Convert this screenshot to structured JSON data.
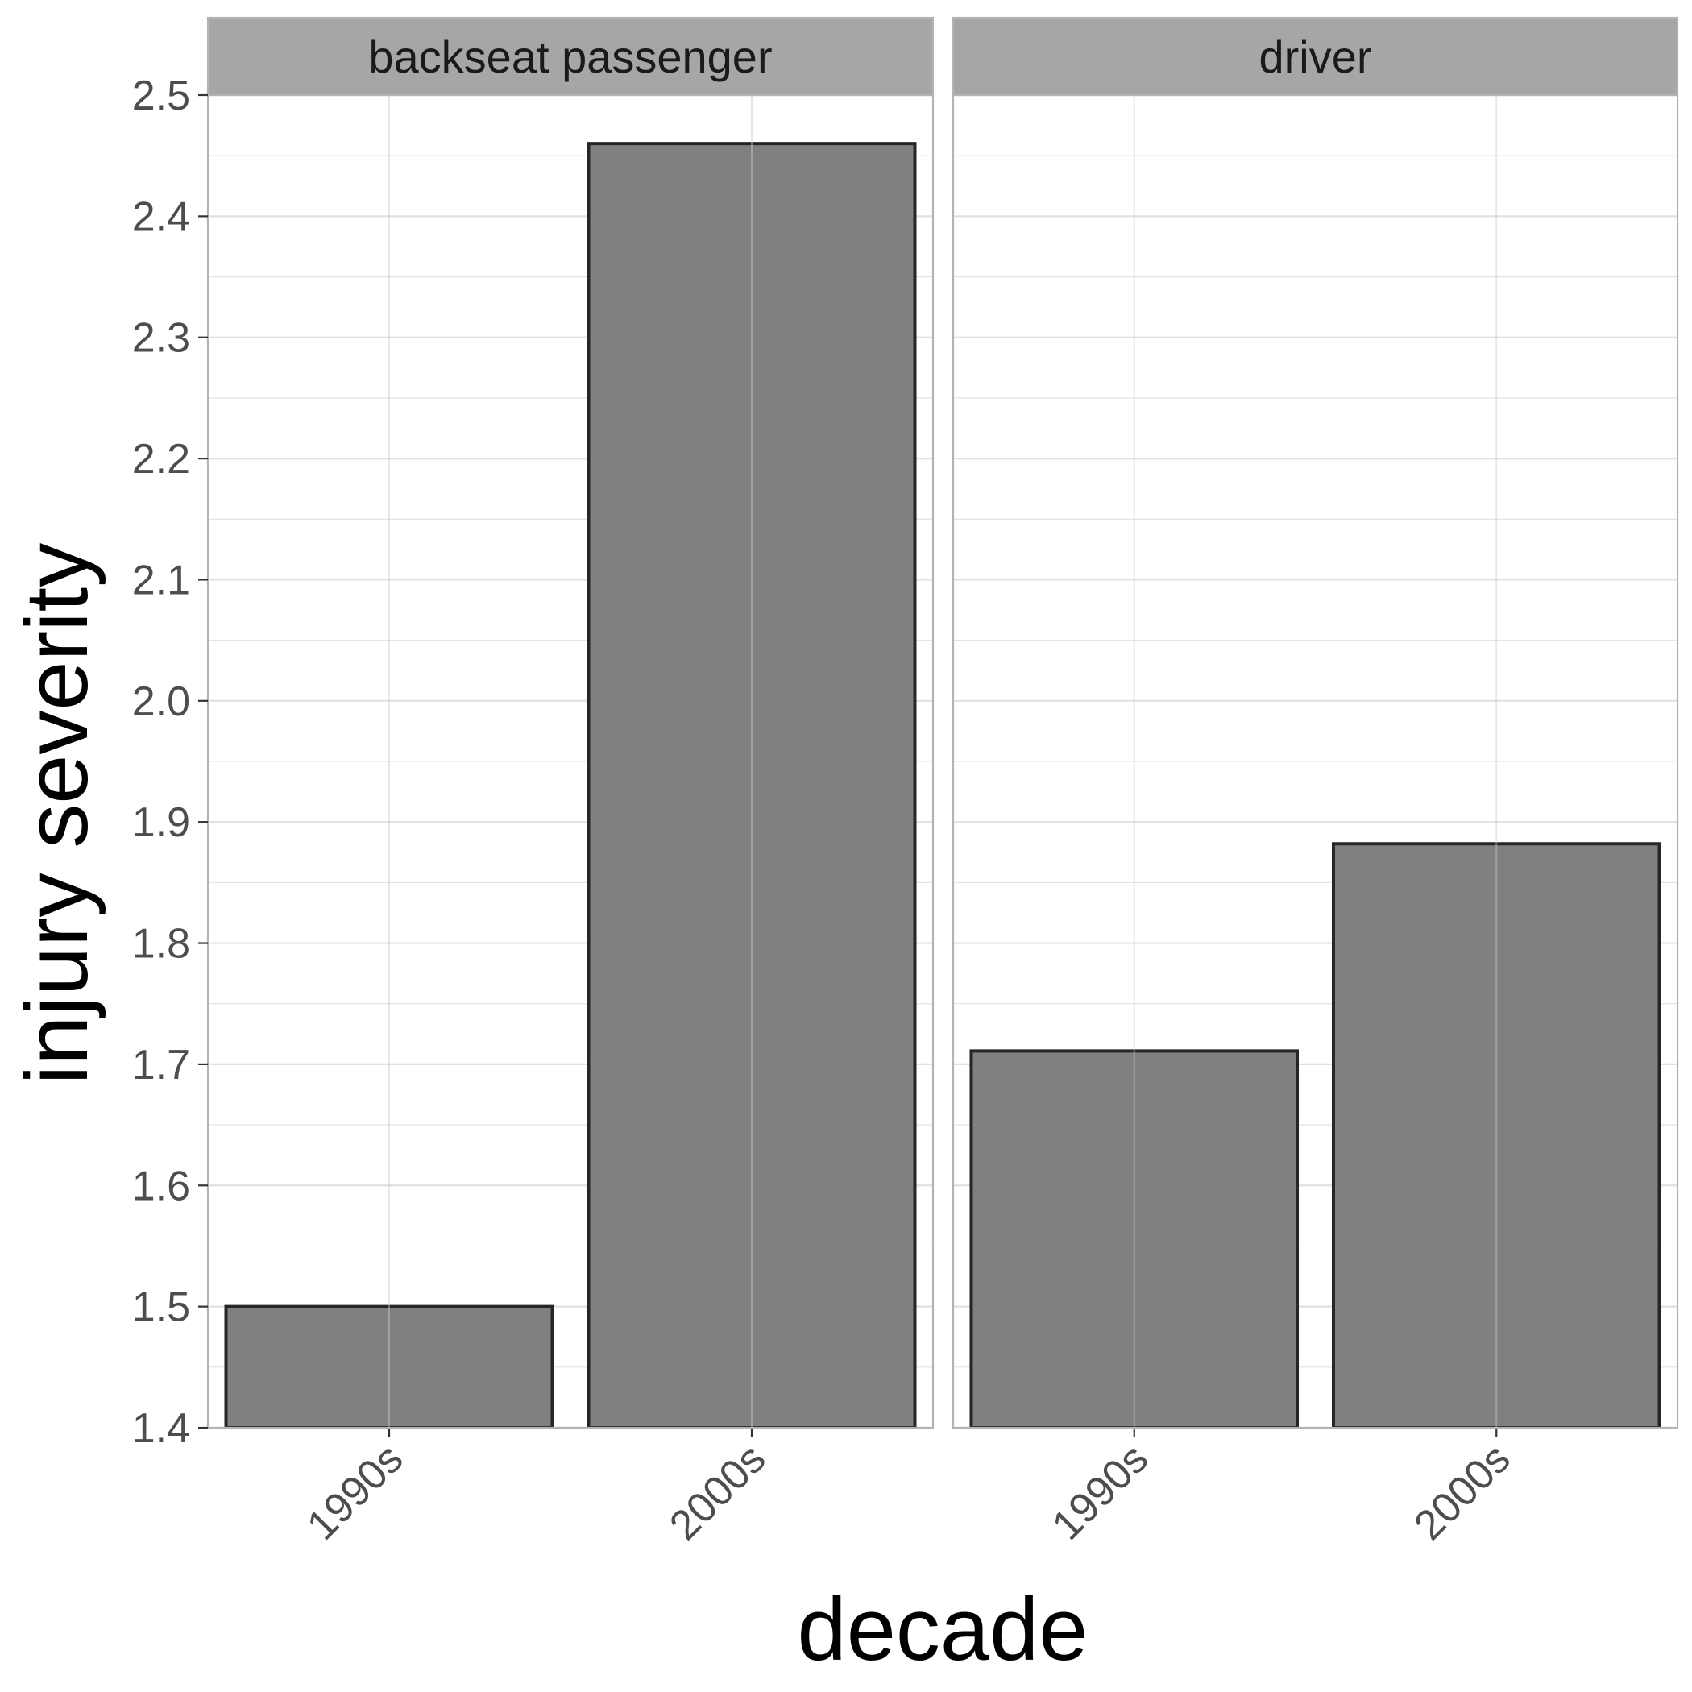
{
  "chart_data": {
    "type": "bar",
    "facet_by": "seat",
    "categories": [
      "1990s",
      "2000s"
    ],
    "xlabel": "decade",
    "ylabel": "injury severity",
    "ylim": [
      1.4,
      2.5
    ],
    "yticks": [
      "1.4",
      "1.5",
      "1.6",
      "1.7",
      "1.8",
      "1.9",
      "2.0",
      "2.1",
      "2.2",
      "2.3",
      "2.4",
      "2.5"
    ],
    "grid": true,
    "panels": [
      {
        "name": "backseat passenger",
        "values": [
          1.5,
          2.46
        ]
      },
      {
        "name": "driver",
        "values": [
          1.711,
          1.882
        ]
      }
    ],
    "colors": {
      "bar_fill": "#808080",
      "bar_stroke": "#262626",
      "strip_fill": "#a6a6a6",
      "grid": "#e0e0e0",
      "panel_border": "#b3b3b3"
    }
  }
}
